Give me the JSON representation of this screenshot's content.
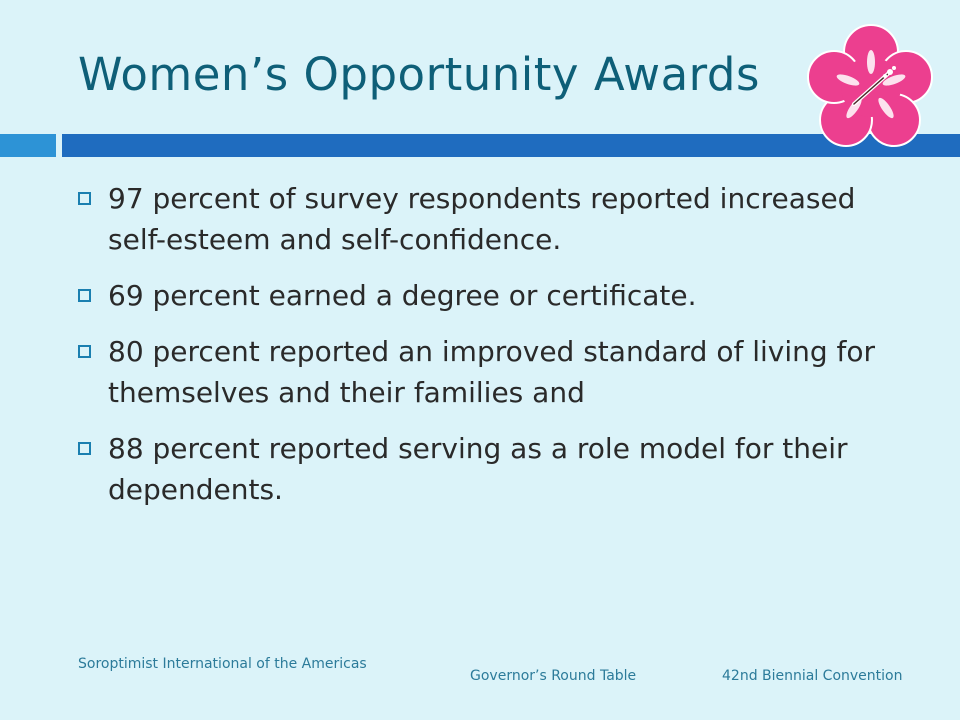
{
  "slide": {
    "title": "Women’s Opportunity Awards",
    "bullets": [
      "97 percent of survey respondents reported increased self-esteem and self-confidence.",
      "69 percent earned a degree or certificate.",
      "80 percent reported an improved standard of living for themselves and their families and",
      "88 percent reported serving as a role model for their dependents."
    ]
  },
  "footer": {
    "left": "Soroptimist International of the Americas",
    "middle": "Governor’s Round Table",
    "right": "42nd Biennial Convention"
  },
  "colors": {
    "background": "#dbf3f9",
    "title": "#0e5f78",
    "accent_bar": "#1f6cbf",
    "flower": "#ec3f8f"
  },
  "icons": {
    "logo": "hibiscus-flower-icon",
    "bullet": "square-bullet-icon"
  }
}
